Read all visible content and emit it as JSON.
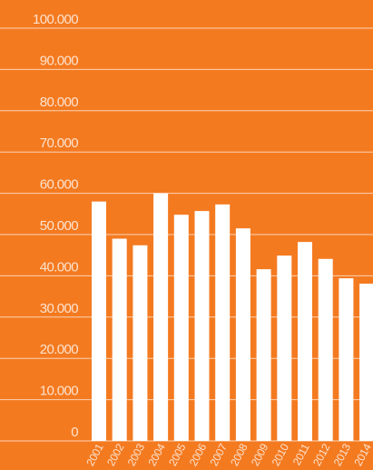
{
  "chart_data": {
    "type": "bar",
    "categories": [
      "2001",
      "2002",
      "2003",
      "2004",
      "2005",
      "2006",
      "2007",
      "2008",
      "2009",
      "2010",
      "2011",
      "2012",
      "2013",
      "2014"
    ],
    "values": [
      58000,
      49000,
      47400,
      60000,
      54800,
      55700,
      57300,
      51500,
      41600,
      44900,
      48200,
      44100,
      39400,
      38100
    ],
    "color": "#ffffff",
    "ylim": [
      0,
      100000
    ],
    "yticks": [
      0,
      {
        "value": 10000,
        "label": "10.000"
      },
      {
        "value": 20000,
        "label": "20.000"
      },
      {
        "value": 30000,
        "label": "30.000"
      },
      {
        "value": 40000,
        "label": "40.000"
      },
      {
        "value": 50000,
        "label": "50.000"
      },
      {
        "value": 60000,
        "label": "60.000"
      },
      {
        "value": 70000,
        "label": "70.000"
      },
      {
        "value": 80000,
        "label": "80.000"
      },
      {
        "value": 90000,
        "label": "90.000"
      },
      {
        "value": 100000,
        "label": "100.000"
      }
    ],
    "grid": true
  }
}
